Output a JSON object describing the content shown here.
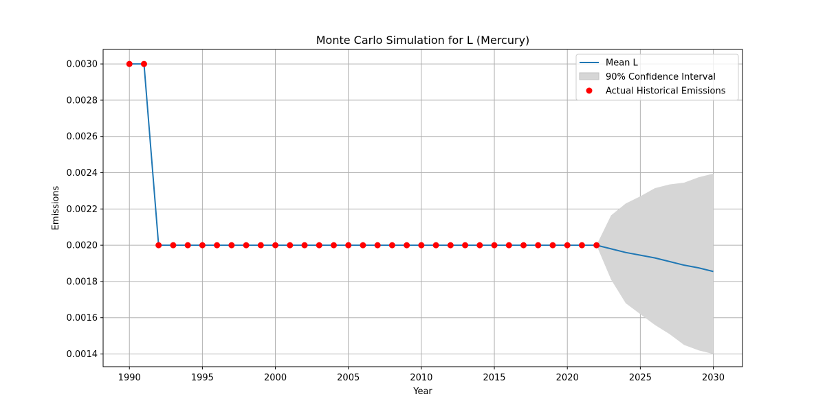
{
  "chart_data": {
    "type": "line",
    "title": "Monte Carlo Simulation for L (Mercury)",
    "xlabel": "Year",
    "ylabel": "Emissions",
    "xlim": [
      1988.2,
      2032.0
    ],
    "ylim": [
      0.00133,
      0.00308
    ],
    "xticks": [
      1990,
      1995,
      2000,
      2005,
      2010,
      2015,
      2020,
      2025,
      2030
    ],
    "xtick_labels": [
      "1990",
      "1995",
      "2000",
      "2005",
      "2010",
      "2015",
      "2020",
      "2025",
      "2030"
    ],
    "yticks": [
      0.0014,
      0.0016,
      0.0018,
      0.002,
      0.0022,
      0.0024,
      0.0026,
      0.0028,
      0.003
    ],
    "ytick_labels": [
      "0.0014",
      "0.0016",
      "0.0018",
      "0.0020",
      "0.0022",
      "0.0024",
      "0.0026",
      "0.0028",
      "0.0030"
    ],
    "grid": true,
    "legend_position": "top-right",
    "legend": [
      {
        "label": "Mean L",
        "kind": "line",
        "color": "#1f77b4"
      },
      {
        "label": "90% Confidence Interval",
        "kind": "patch",
        "color": "#d6d6d6"
      },
      {
        "label": "Actual Historical Emissions",
        "kind": "marker",
        "color": "#ff0000"
      }
    ],
    "series": [
      {
        "name": "Mean L",
        "color": "#1f77b4",
        "x": [
          1990,
          1991,
          1992,
          1993,
          1994,
          1995,
          1996,
          1997,
          1998,
          1999,
          2000,
          2001,
          2002,
          2003,
          2004,
          2005,
          2006,
          2007,
          2008,
          2009,
          2010,
          2011,
          2012,
          2013,
          2014,
          2015,
          2016,
          2017,
          2018,
          2019,
          2020,
          2021,
          2022,
          2023,
          2024,
          2025,
          2026,
          2027,
          2028,
          2029,
          2030
        ],
        "y": [
          0.003,
          0.003,
          0.002,
          0.002,
          0.002,
          0.002,
          0.002,
          0.002,
          0.002,
          0.002,
          0.002,
          0.002,
          0.002,
          0.002,
          0.002,
          0.002,
          0.002,
          0.002,
          0.002,
          0.002,
          0.002,
          0.002,
          0.002,
          0.002,
          0.002,
          0.002,
          0.002,
          0.002,
          0.002,
          0.002,
          0.002,
          0.002,
          0.002,
          0.00198,
          0.00196,
          0.001945,
          0.00193,
          0.00191,
          0.00189,
          0.001875,
          0.001855
        ]
      },
      {
        "name": "90% Confidence Interval",
        "color": "#d6d6d6",
        "x": [
          2022,
          2023,
          2024,
          2025,
          2026,
          2027,
          2028,
          2029,
          2030
        ],
        "lower": [
          0.002,
          0.00181,
          0.00168,
          0.00162,
          0.00156,
          0.00151,
          0.00145,
          0.00142,
          0.0014
        ],
        "upper": [
          0.002,
          0.002165,
          0.00223,
          0.00227,
          0.002315,
          0.002335,
          0.002345,
          0.002375,
          0.002395
        ]
      },
      {
        "name": "Actual Historical Emissions",
        "color": "#ff0000",
        "x": [
          1990,
          1991,
          1992,
          1993,
          1994,
          1995,
          1996,
          1997,
          1998,
          1999,
          2000,
          2001,
          2002,
          2003,
          2004,
          2005,
          2006,
          2007,
          2008,
          2009,
          2010,
          2011,
          2012,
          2013,
          2014,
          2015,
          2016,
          2017,
          2018,
          2019,
          2020,
          2021,
          2022
        ],
        "y": [
          0.003,
          0.003,
          0.002,
          0.002,
          0.002,
          0.002,
          0.002,
          0.002,
          0.002,
          0.002,
          0.002,
          0.002,
          0.002,
          0.002,
          0.002,
          0.002,
          0.002,
          0.002,
          0.002,
          0.002,
          0.002,
          0.002,
          0.002,
          0.002,
          0.002,
          0.002,
          0.002,
          0.002,
          0.002,
          0.002,
          0.002,
          0.002,
          0.002
        ]
      }
    ]
  }
}
